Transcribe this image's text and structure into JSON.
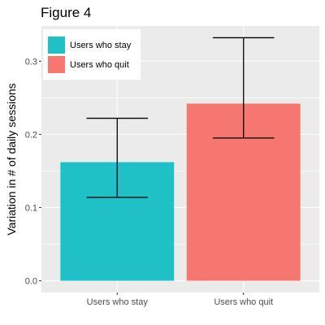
{
  "chart_data": {
    "type": "bar",
    "title": "Figure 4",
    "xlabel": "",
    "ylabel": "Variation in # of daily sessions",
    "categories": [
      "Users who stay",
      "Users who quit"
    ],
    "values": [
      0.162,
      0.242
    ],
    "error_low": [
      0.114,
      0.195
    ],
    "error_high": [
      0.222,
      0.332
    ],
    "colors": [
      "#20c1c6",
      "#f57770"
    ],
    "ylim": [
      -0.016,
      0.348
    ],
    "yticks": [
      0.0,
      0.1,
      0.2,
      0.3
    ],
    "ytick_labels": [
      "0.0",
      "0.1",
      "0.2",
      "0.3"
    ],
    "grid": true,
    "legend": {
      "position": "top-left",
      "entries": [
        {
          "label": "Users who stay",
          "color": "#20c1c6"
        },
        {
          "label": "Users who quit",
          "color": "#f57770"
        }
      ]
    },
    "panel_background": "#ebebeb",
    "grid_color": "#ffffff"
  }
}
